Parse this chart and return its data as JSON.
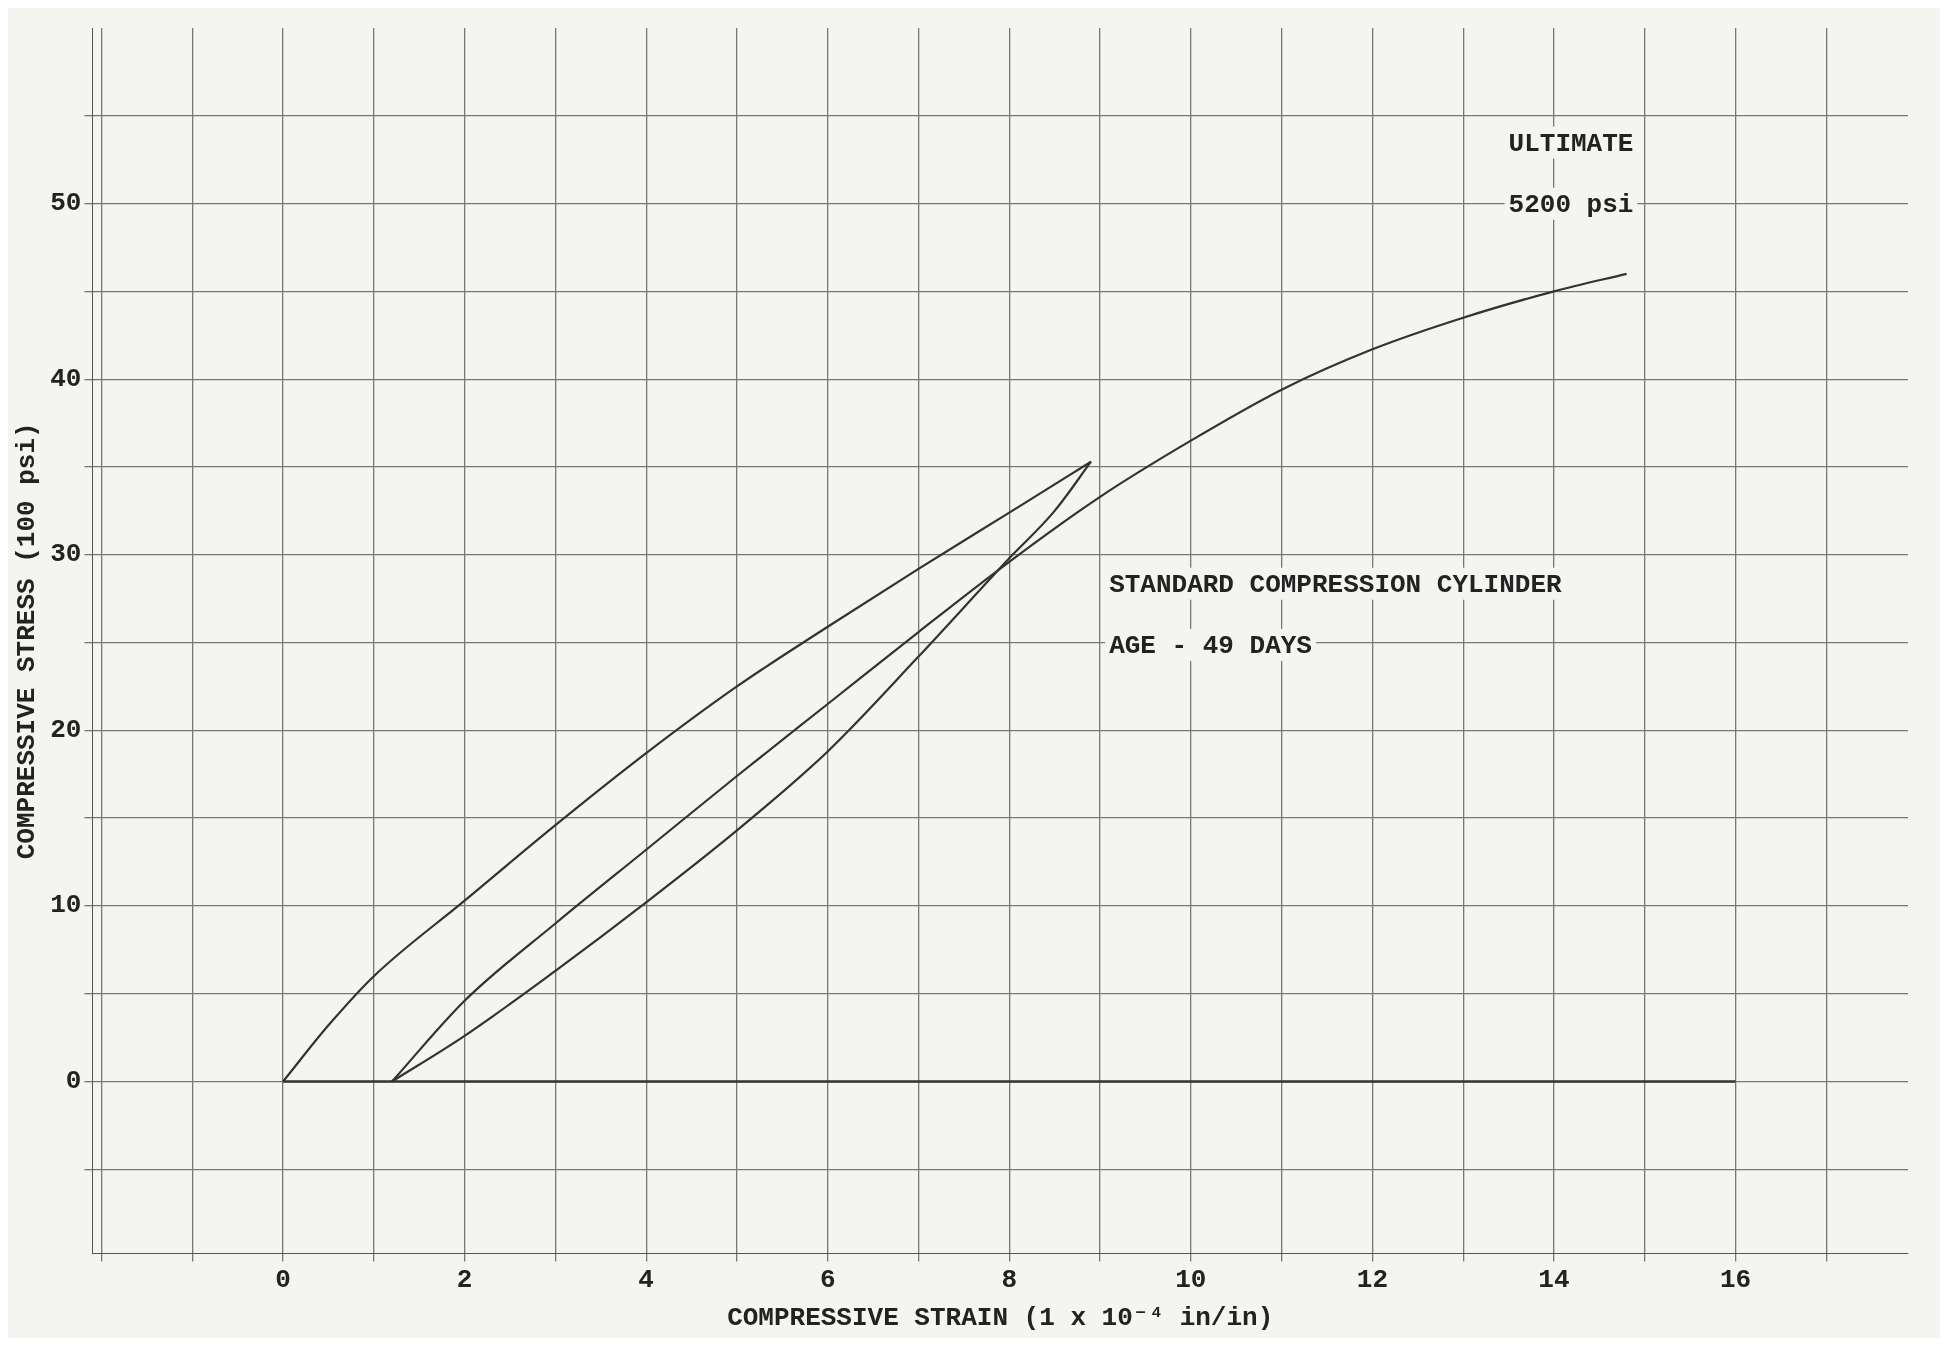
{
  "chart_data": {
    "type": "line",
    "xlabel": "COMPRESSIVE STRAIN (1 x 10⁻⁴ in/in)",
    "ylabel": "COMPRESSIVE STRESS (100 psi)",
    "xlim": [
      -2.1,
      17.9
    ],
    "ylim": [
      -9.8,
      60
    ],
    "xticks": [
      {
        "value": -2,
        "label": null
      },
      {
        "value": -1,
        "label": null
      },
      0,
      {
        "value": 1,
        "label": null
      },
      2,
      {
        "value": 3,
        "label": null
      },
      4,
      {
        "value": 5,
        "label": null
      },
      6,
      {
        "value": 7,
        "label": null
      },
      8,
      {
        "value": 9,
        "label": null
      },
      10,
      {
        "value": 11,
        "label": null
      },
      12,
      {
        "value": 13,
        "label": null
      },
      14,
      {
        "value": 15,
        "label": null
      },
      16,
      {
        "value": 17,
        "label": null
      }
    ],
    "yticks": [
      {
        "value": -5,
        "label": null
      },
      0,
      {
        "value": 5,
        "label": null
      },
      10,
      {
        "value": 15,
        "label": null
      },
      20,
      {
        "value": 25,
        "label": null
      },
      30,
      {
        "value": 35,
        "label": null
      },
      40,
      {
        "value": 45,
        "label": null
      },
      50,
      {
        "value": 55,
        "label": null
      }
    ],
    "grid": true,
    "legend": false,
    "marker": "none",
    "line_style": "solid",
    "series": [
      {
        "color": "#333333",
        "x": [
          0,
          0.5,
          1,
          2,
          3,
          4,
          5,
          6,
          7,
          8,
          8.9
        ],
        "values": [
          0,
          3.2,
          6,
          10.3,
          14.6,
          18.7,
          22.5,
          25.9,
          29.2,
          32.4,
          35.3
        ]
      },
      {
        "color": "#333333",
        "x": [
          8.9,
          8.5,
          8,
          7,
          6,
          5,
          4,
          3,
          2,
          1.2
        ],
        "values": [
          35.3,
          32.5,
          29.8,
          24.2,
          18.8,
          14.3,
          10.2,
          6.3,
          2.6,
          0
        ]
      },
      {
        "color": "#333333",
        "x": [
          1.2,
          2,
          3,
          4,
          5,
          6,
          7,
          8,
          9,
          10,
          11,
          12,
          13,
          14,
          14.8
        ],
        "values": [
          0,
          4.6,
          9,
          13.2,
          17.4,
          21.5,
          25.6,
          29.6,
          33.3,
          36.5,
          39.4,
          41.7,
          43.5,
          45,
          46
        ]
      }
    ],
    "ref_lines": [
      {
        "axis": "y",
        "value": 0,
        "color": "#333333"
      }
    ],
    "annotations": [
      "ULTIMATE",
      "5200 psi",
      "STANDARD COMPRESSION CYLINDER",
      "AGE - 49 DAYS"
    ]
  }
}
